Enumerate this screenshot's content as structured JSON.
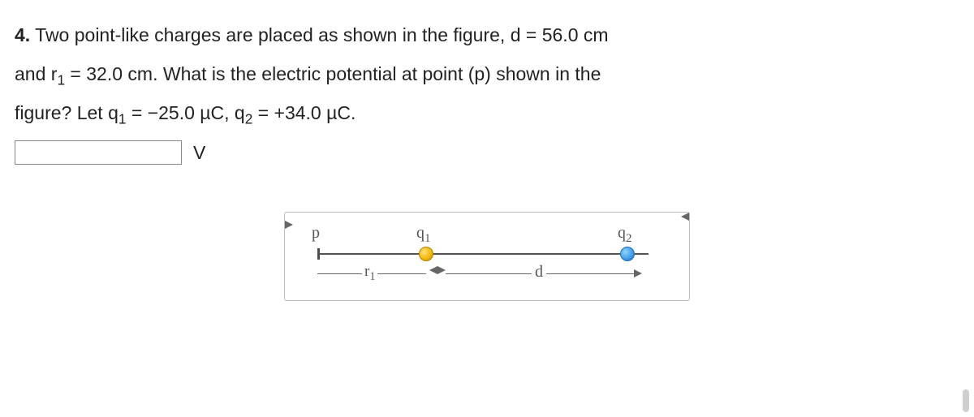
{
  "problem": {
    "number": "4.",
    "line1_a": " Two point-like charges are placed as shown in the figure, d = ",
    "d_val": "56.0 cm",
    "line2_a": "and r",
    "line2_sub": "1",
    "line2_b": " = ",
    "r1_val": "32.0 cm",
    "line2_c": ". What is the electric potential at point (p) shown in the",
    "line3_a": "figure? Let q",
    "line3_sub1": "1",
    "line3_b": " = ",
    "q1_val": "−25.0 µC",
    "line3_c": ", q",
    "line3_sub2": "2",
    "line3_d": " = ",
    "q2_val": "+34.0 µC",
    "line3_e": "."
  },
  "answer": {
    "value": "",
    "unit": "V"
  },
  "figure": {
    "p_label": "p",
    "q1_label_base": "q",
    "q1_label_sub": "1",
    "q2_label_base": "q",
    "q2_label_sub": "2",
    "r1_label_base": "r",
    "r1_label_sub": "1",
    "d_label": "d"
  },
  "style": {
    "q1_color": "#f2b400",
    "q2_color": "#3f9be8",
    "border_color": "#bbbbbb",
    "line_color": "#545454"
  }
}
